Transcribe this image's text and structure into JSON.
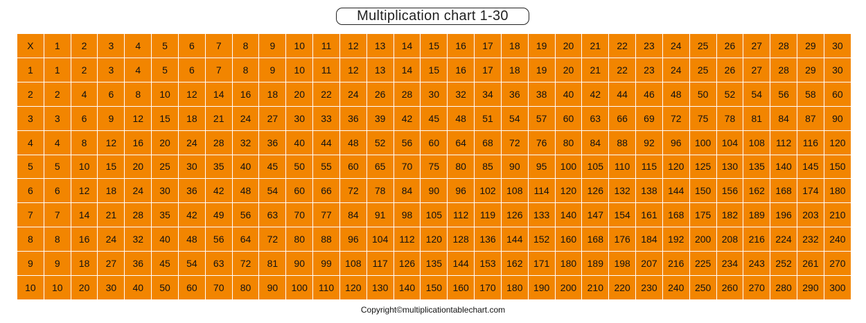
{
  "title": "Multiplication chart 1-30",
  "corner_label": "X",
  "col_max": 30,
  "row_max": 10,
  "cell_color": "#F28500",
  "border_color": "#FFFFFF",
  "text_color": "#111111",
  "copyright": "Copyright©multiplicationtablechart.com"
}
